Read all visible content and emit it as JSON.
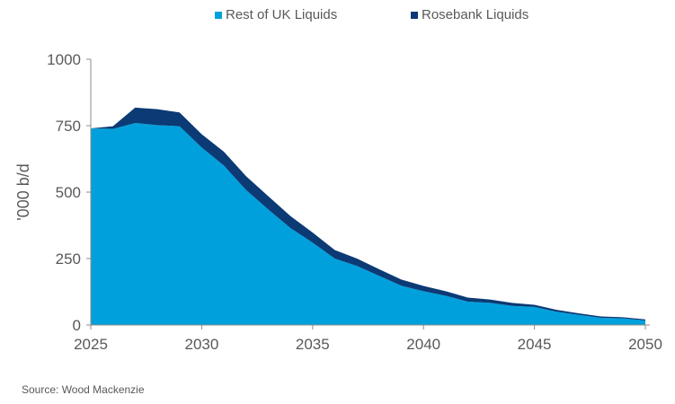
{
  "chart_data": {
    "type": "area",
    "stacked": true,
    "title": "",
    "xlabel": "",
    "ylabel": "'000 b/d",
    "ylim": [
      0,
      1000
    ],
    "xlim": [
      2025,
      2050
    ],
    "yticks": [
      0,
      250,
      500,
      750,
      1000
    ],
    "xticks": [
      2025,
      2030,
      2035,
      2040,
      2045,
      2050
    ],
    "ytick_labels": [
      "0",
      "250",
      "500",
      "750",
      "1000"
    ],
    "xtick_labels": [
      "2025",
      "2030",
      "2035",
      "2040",
      "2045",
      "2050"
    ],
    "grid": false,
    "legend_position": "top",
    "x": [
      2025,
      2026,
      2027,
      2028,
      2029,
      2030,
      2031,
      2032,
      2033,
      2034,
      2035,
      2036,
      2037,
      2038,
      2039,
      2040,
      2041,
      2042,
      2043,
      2044,
      2045,
      2046,
      2047,
      2048,
      2049,
      2050
    ],
    "series": [
      {
        "name": "Rest of UK Liquids",
        "color": "#00a0dc",
        "values": [
          740,
          738,
          760,
          752,
          748,
          668,
          600,
          508,
          435,
          365,
          310,
          250,
          222,
          185,
          148,
          127,
          110,
          88,
          83,
          72,
          68,
          50,
          38,
          27,
          25,
          17
        ]
      },
      {
        "name": "Rosebank Liquids",
        "color": "#0b3a75",
        "values": [
          0,
          10,
          58,
          60,
          52,
          50,
          52,
          52,
          50,
          45,
          38,
          32,
          28,
          25,
          23,
          20,
          17,
          15,
          13,
          11,
          8,
          7,
          6,
          5,
          4,
          4
        ]
      }
    ]
  },
  "source": "Source: Wood Mackenzie"
}
